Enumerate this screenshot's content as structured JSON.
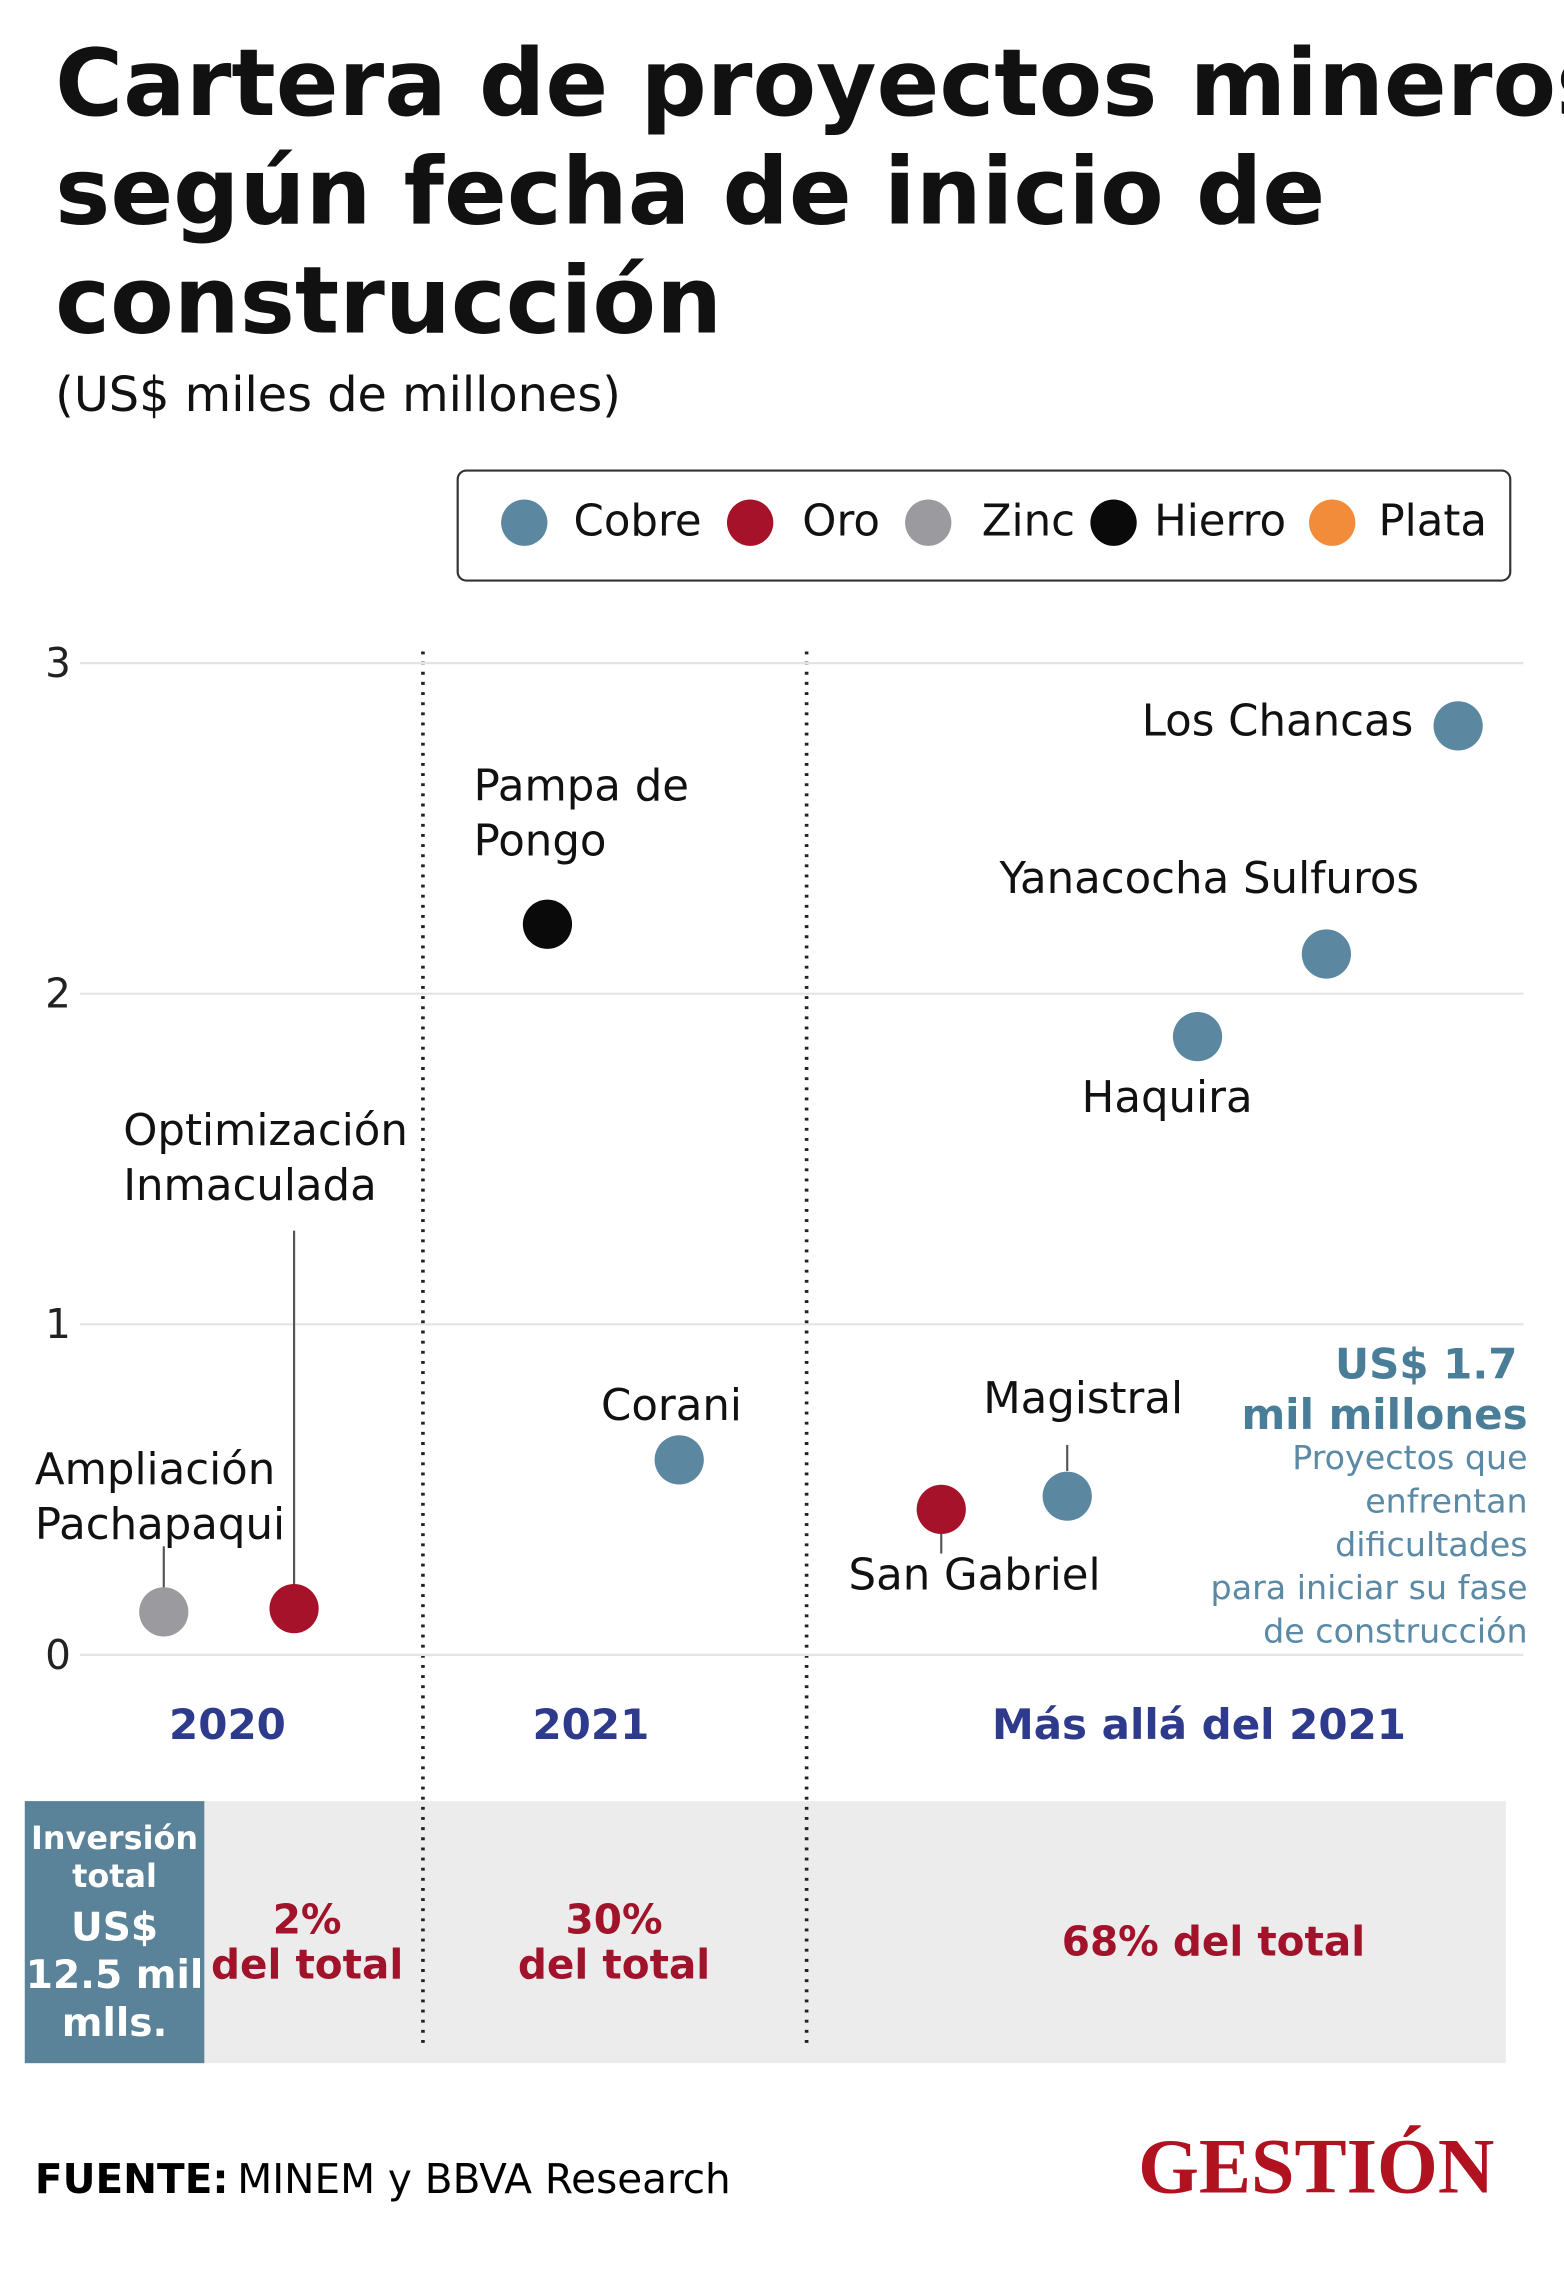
{
  "chart_data": {
    "type": "scatter",
    "title": [
      "Cartera de proyectos mineros",
      "según fecha de inicio de",
      "construcción"
    ],
    "subtitle": "(US$ miles de millones)",
    "categories": [
      "2020",
      "2021",
      "Más allá del 2021"
    ],
    "ylim": [
      0,
      3
    ],
    "yticks": [
      0,
      1,
      2,
      3
    ],
    "grid": true,
    "legend": "top-right",
    "series": [
      {
        "name": "Cobre",
        "color": "#5b87a0",
        "points": [
          {
            "label": [
              "Corani"
            ],
            "group": "2021",
            "value": 0.59
          },
          {
            "label": [
              "Los Chancas"
            ],
            "group": "Más allá del 2021",
            "value": 2.81
          },
          {
            "label": [
              "Yanacocha Sulfuros"
            ],
            "group": "Más allá del 2021",
            "value": 2.12
          },
          {
            "label": [
              "Haquira"
            ],
            "group": "Más allá del 2021",
            "value": 1.87
          },
          {
            "label": [
              "Magistral"
            ],
            "group": "Más allá del 2021",
            "value": 0.48
          }
        ]
      },
      {
        "name": "Oro",
        "color": "#a6122a",
        "points": [
          {
            "label": [
              "Optimización",
              "Inmaculada"
            ],
            "group": "2020",
            "value": 0.14
          },
          {
            "label": [
              "San Gabriel"
            ],
            "group": "Más allá del 2021",
            "value": 0.44
          }
        ]
      },
      {
        "name": "Zinc",
        "color": "#9b9b9f",
        "points": [
          {
            "label": [
              "Ampliación",
              "Pachapaqui"
            ],
            "group": "2020",
            "value": 0.13
          }
        ]
      },
      {
        "name": "Hierro",
        "color": "#0a0a0a",
        "points": [
          {
            "label": [
              "Pampa de",
              "Pongo"
            ],
            "group": "2021",
            "value": 2.21
          }
        ]
      },
      {
        "name": "Plata",
        "color": "#f28c3a",
        "points": []
      }
    ],
    "annotation": {
      "amount": [
        "US$ 1.7",
        "mil millones"
      ],
      "text": [
        "Proyectos que",
        "enfrentan",
        "dificultades",
        "para iniciar su fase",
        "de construcción"
      ]
    },
    "total": {
      "label": [
        "Inversión",
        "total"
      ],
      "amount": [
        "US$",
        "12.5 mil",
        "mlls."
      ]
    },
    "shares": [
      [
        "2%",
        "del total"
      ],
      [
        "30%",
        "del total"
      ],
      [
        "68% del total"
      ]
    ],
    "source_label": "FUENTE:",
    "source": "MINEM y BBVA Research",
    "brand": "GESTIÓN"
  }
}
